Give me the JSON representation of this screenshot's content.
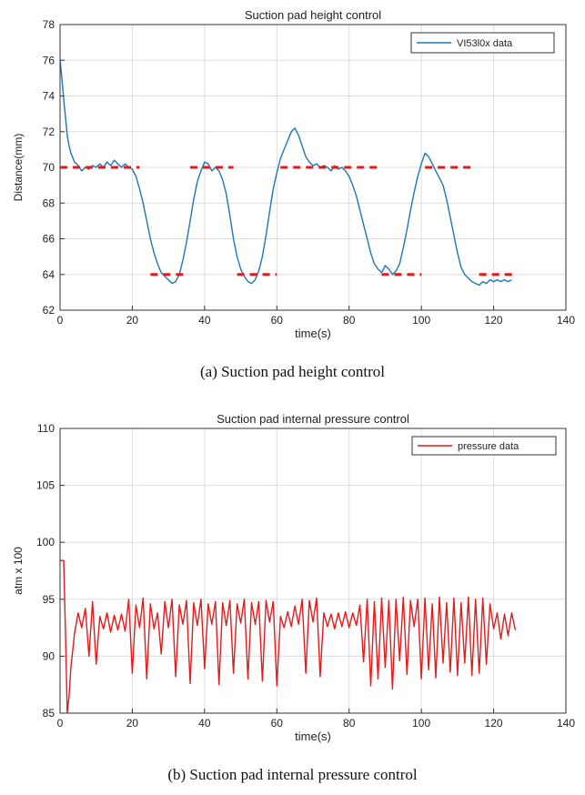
{
  "figure": {
    "caption_a": "(a)  Suction  pad  height  control",
    "caption_b": "(b)  Suction  pad  internal  pressure  control"
  },
  "chart_data": [
    {
      "type": "line",
      "title": "Suction pad height control",
      "xlabel": "time(s)",
      "ylabel": "Distance(mm)",
      "xlim": [
        0,
        140
      ],
      "ylim": [
        62,
        78
      ],
      "xticks": [
        0,
        20,
        40,
        60,
        80,
        100,
        120,
        140
      ],
      "yticks": [
        62,
        64,
        66,
        68,
        70,
        72,
        74,
        76,
        78
      ],
      "grid": true,
      "legend_position": "top-right",
      "series": [
        {
          "name": "VI53l0x data",
          "color": "#1f77b4",
          "style": "solid",
          "x": [
            0,
            0.5,
            1,
            1.5,
            2,
            2.5,
            3,
            4,
            5,
            6,
            7,
            8,
            9,
            10,
            11,
            12,
            13,
            14,
            15,
            16,
            17,
            18,
            19,
            20,
            21,
            22,
            23,
            24,
            25,
            26,
            27,
            28,
            29,
            30,
            31,
            32,
            33,
            34,
            35,
            36,
            37,
            38,
            39,
            40,
            41,
            42,
            43,
            44,
            45,
            46,
            47,
            48,
            49,
            50,
            51,
            52,
            53,
            54,
            55,
            56,
            57,
            58,
            59,
            60,
            61,
            62,
            63,
            64,
            65,
            66,
            67,
            68,
            69,
            70,
            71,
            72,
            73,
            74,
            75,
            76,
            77,
            78,
            79,
            80,
            81,
            82,
            83,
            84,
            85,
            86,
            87,
            88,
            89,
            90,
            91,
            92,
            93,
            94,
            95,
            96,
            97,
            98,
            99,
            100,
            101,
            102,
            103,
            104,
            105,
            106,
            107,
            108,
            109,
            110,
            111,
            112,
            113,
            114,
            115,
            116,
            117,
            118,
            119,
            120,
            121,
            122,
            123,
            124,
            125
          ],
          "y": [
            76.0,
            75.0,
            73.8,
            72.8,
            71.8,
            71.2,
            70.8,
            70.3,
            70.1,
            69.8,
            70.0,
            69.9,
            70.1,
            70.0,
            70.2,
            70.0,
            70.3,
            70.1,
            70.4,
            70.2,
            70.0,
            70.2,
            70.0,
            69.9,
            69.5,
            68.8,
            68.0,
            67.0,
            66.0,
            65.2,
            64.6,
            64.1,
            63.9,
            63.7,
            63.5,
            63.6,
            64.0,
            64.8,
            65.8,
            67.0,
            68.2,
            69.2,
            69.8,
            70.3,
            70.2,
            69.8,
            70.0,
            69.8,
            69.3,
            68.5,
            67.3,
            66.0,
            65.0,
            64.3,
            63.9,
            63.6,
            63.5,
            63.7,
            64.2,
            65.0,
            66.2,
            67.5,
            68.8,
            69.7,
            70.5,
            71.0,
            71.5,
            72.0,
            72.2,
            71.8,
            71.2,
            70.6,
            70.3,
            70.1,
            70.2,
            70.0,
            70.1,
            70.0,
            69.8,
            70.1,
            69.9,
            70.0,
            69.8,
            69.5,
            69.0,
            68.4,
            67.6,
            66.8,
            66.0,
            65.2,
            64.6,
            64.3,
            64.1,
            64.5,
            64.3,
            64.0,
            64.2,
            64.6,
            65.5,
            66.5,
            67.6,
            68.6,
            69.5,
            70.2,
            70.8,
            70.6,
            70.2,
            69.8,
            69.4,
            69.0,
            68.2,
            67.2,
            66.2,
            65.2,
            64.4,
            64.0,
            63.8,
            63.6,
            63.5,
            63.4,
            63.6,
            63.5,
            63.7,
            63.6,
            63.7,
            63.6,
            63.7,
            63.6,
            63.7
          ]
        },
        {
          "name": "",
          "color": "#e41a1c",
          "style": "dashed",
          "segments": [
            {
              "x": [
                0,
                22
              ],
              "y": [
                70,
                70
              ]
            },
            {
              "x": [
                25,
                35
              ],
              "y": [
                64,
                64
              ]
            },
            {
              "x": [
                36,
                48
              ],
              "y": [
                70,
                70
              ]
            },
            {
              "x": [
                49,
                60
              ],
              "y": [
                64,
                64
              ]
            },
            {
              "x": [
                61,
                88
              ],
              "y": [
                70,
                70
              ]
            },
            {
              "x": [
                89,
                100
              ],
              "y": [
                64,
                64
              ]
            },
            {
              "x": [
                101,
                115
              ],
              "y": [
                70,
                70
              ]
            },
            {
              "x": [
                116,
                126
              ],
              "y": [
                64,
                64
              ]
            }
          ]
        }
      ]
    },
    {
      "type": "line",
      "title": "Suction pad  internal pressure control",
      "xlabel": "time(s)",
      "ylabel": "atm x 100",
      "xlim": [
        0,
        140
      ],
      "ylim": [
        85,
        110
      ],
      "xticks": [
        0,
        20,
        40,
        60,
        80,
        100,
        120,
        140
      ],
      "yticks": [
        85,
        90,
        95,
        100,
        105,
        110
      ],
      "grid": true,
      "legend_position": "top-right",
      "series": [
        {
          "name": "pressure data",
          "color": "#e41a1c",
          "x": [
            0,
            1,
            1.5,
            2,
            2.5,
            3,
            4,
            5,
            6,
            7,
            8,
            9,
            10,
            11,
            12,
            13,
            14,
            15,
            16,
            17,
            18,
            19,
            20,
            21,
            22,
            23,
            24,
            25,
            26,
            27,
            28,
            29,
            30,
            31,
            32,
            33,
            34,
            35,
            36,
            37,
            38,
            39,
            40,
            41,
            42,
            43,
            44,
            45,
            46,
            47,
            48,
            49,
            50,
            51,
            52,
            53,
            54,
            55,
            56,
            57,
            58,
            59,
            60,
            61,
            62,
            63,
            64,
            65,
            66,
            67,
            68,
            69,
            70,
            71,
            72,
            73,
            74,
            75,
            76,
            77,
            78,
            79,
            80,
            81,
            82,
            83,
            84,
            85,
            86,
            87,
            88,
            89,
            90,
            91,
            92,
            93,
            94,
            95,
            96,
            97,
            98,
            99,
            100,
            101,
            102,
            103,
            104,
            105,
            106,
            107,
            108,
            109,
            110,
            111,
            112,
            113,
            114,
            115,
            116,
            117,
            118,
            119,
            120,
            121,
            122,
            123,
            124,
            125,
            126
          ],
          "y": [
            98.4,
            98.4,
            92.0,
            85.0,
            86.5,
            89.0,
            92.0,
            93.8,
            92.5,
            94.2,
            90.0,
            94.8,
            89.3,
            93.5,
            92.4,
            93.8,
            92.1,
            93.6,
            92.3,
            93.7,
            92.2,
            95.0,
            88.5,
            94.5,
            92.5,
            95.1,
            88.0,
            94.6,
            92.4,
            93.8,
            90.2,
            94.8,
            92.5,
            95.0,
            88.2,
            94.5,
            92.8,
            94.9,
            87.6,
            94.7,
            92.7,
            95.0,
            88.9,
            94.6,
            92.8,
            94.8,
            87.5,
            94.7,
            92.7,
            94.9,
            88.5,
            94.6,
            92.9,
            95.0,
            88.0,
            94.7,
            92.8,
            94.8,
            87.8,
            94.9,
            93.0,
            94.8,
            87.4,
            93.5,
            92.5,
            93.9,
            92.6,
            94.4,
            92.8,
            95.0,
            88.5,
            94.9,
            93.0,
            95.1,
            88.2,
            93.8,
            92.6,
            93.7,
            92.4,
            93.8,
            92.6,
            93.9,
            92.5,
            93.8,
            92.7,
            94.5,
            89.5,
            95.0,
            87.4,
            94.8,
            88.0,
            95.1,
            89.0,
            94.9,
            87.1,
            95.0,
            89.6,
            95.2,
            88.4,
            94.9,
            92.6,
            95.0,
            88.0,
            95.1,
            88.8,
            94.6,
            88.1,
            95.2,
            89.4,
            94.7,
            88.6,
            95.1,
            88.3,
            94.7,
            89.4,
            95.2,
            88.3,
            95.0,
            88.5,
            95.1,
            89.3,
            94.6,
            92.4,
            93.8,
            91.5,
            93.7,
            91.8,
            93.8,
            92.3
          ]
        }
      ]
    }
  ]
}
